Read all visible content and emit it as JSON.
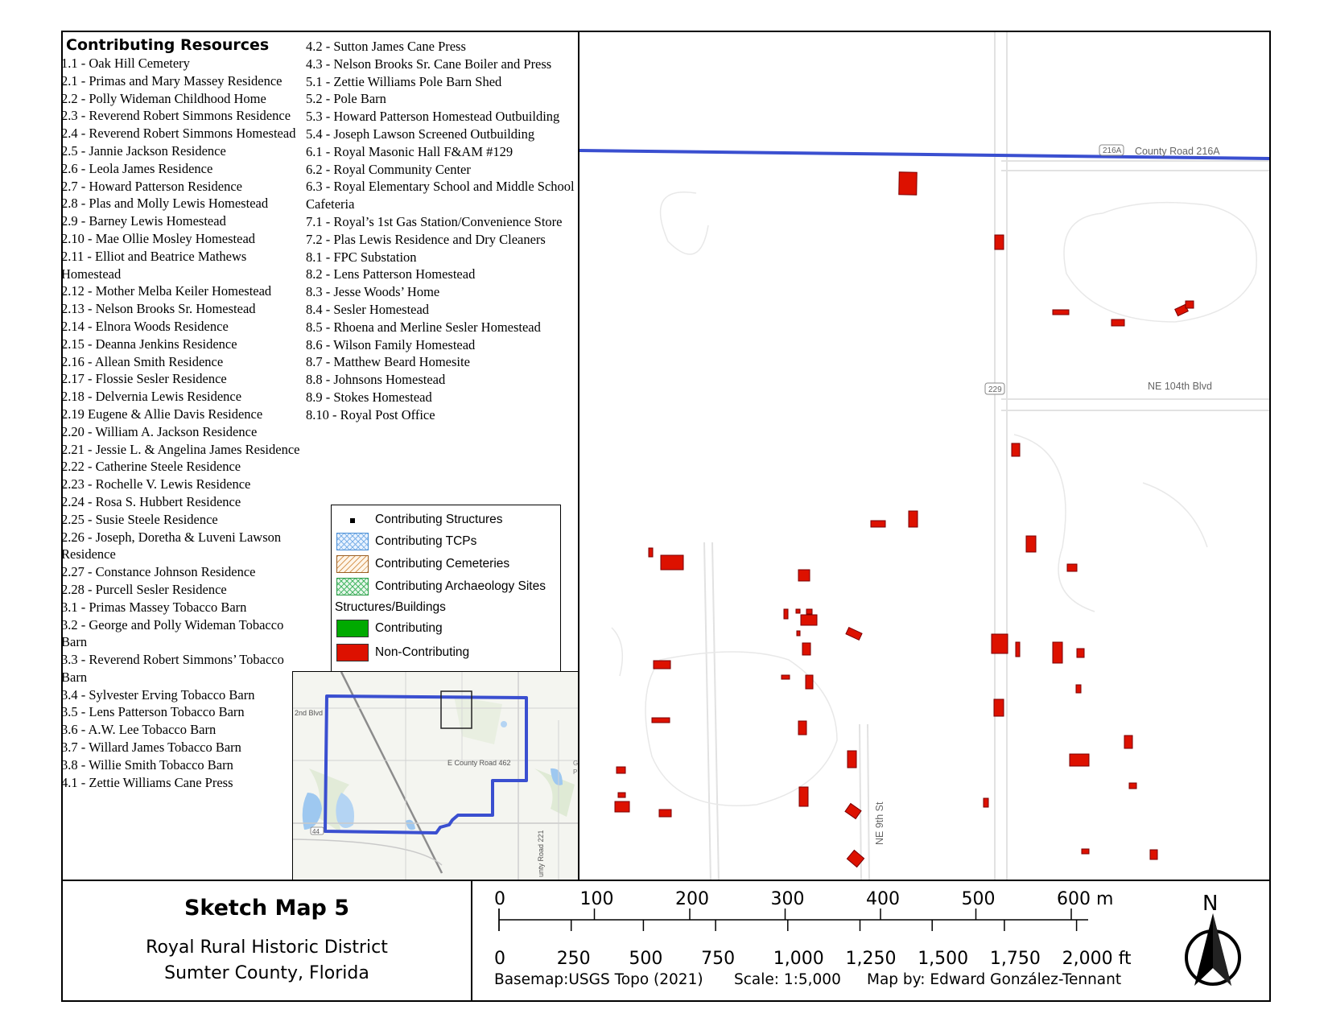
{
  "resources": {
    "heading": "Contributing Resources",
    "left_column": [
      "1.1 - Oak Hill Cemetery",
      "2.1 - Primas and Mary Massey Residence",
      "2.2 - Polly Wideman Childhood Home",
      "2.3 - Reverend Robert Simmons Residence",
      "2.4 - Reverend Robert Simmons Homestead",
      "2.5 - Jannie Jackson Residence",
      "2.6 - Leola James Residence",
      "2.7 - Howard Patterson Residence",
      "2.8 - Plas and Molly Lewis Homestead",
      "2.9 - Barney Lewis Homestead",
      "2.10 - Mae Ollie Mosley Homestead",
      "2.11 - Elliot and Beatrice Mathews Homestead",
      "2.12 - Mother Melba Keiler Homestead",
      "2.13 - Nelson Brooks Sr. Homestead",
      "2.14 - Elnora Woods Residence",
      "2.15 - Deanna Jenkins Residence",
      "2.16 - Allean Smith Residence",
      "2.17 - Flossie Sesler Residence",
      "2.18 - Delvernia Lewis Residence",
      "2.19 Eugene & Allie Davis Residence",
      "2.20 - William A. Jackson Residence",
      "2.21 - Jessie L. & Angelina James Residence",
      "2.22 - Catherine Steele Residence",
      "2.23 -  Rochelle V. Lewis Residence",
      "2.24 - Rosa S. Hubbert Residence",
      "2.25 - Susie Steele Residence",
      "2.26 - Joseph, Doretha & Luveni Lawson Residence",
      "2.27 - Constance Johnson Residence",
      "2.28 - Purcell Sesler Residence",
      "3.1 - Primas Massey Tobacco Barn",
      "3.2 - George and Polly Wideman Tobacco Barn",
      "3.3 - Reverend Robert Simmons’ Tobacco Barn",
      "3.4 - Sylvester Erving Tobacco Barn",
      "3.5 - Lens Patterson Tobacco Barn",
      "3.6 - A.W. Lee Tobacco Barn",
      "3.7 - Willard James Tobacco Barn",
      "3.8 - Willie Smith Tobacco Barn",
      "4.1 - Zettie Williams Cane Press"
    ],
    "right_column": [
      "4.2 - Sutton James Cane Press",
      "4.3 - Nelson Brooks Sr. Cane Boiler and Press",
      "5.1 - Zettie Williams Pole Barn Shed",
      "5.2 - Pole Barn",
      "5.3 - Howard Patterson Homestead Outbuilding",
      "5.4 - Joseph Lawson Screened Outbuilding",
      "6.1 - Royal Masonic Hall F&AM #129",
      "6.2 - Royal Community Center",
      "6.3 - Royal Elementary School and Middle School Cafeteria",
      "7.1 - Royal’s 1st Gas Station/Convenience Store",
      "7.2 - Plas Lewis Residence and Dry Cleaners",
      "8.1 - FPC Substation",
      "8.2 - Lens Patterson Homestead",
      "8.3 - Jesse Woods’ Home",
      "8.4 - Sesler Homestead",
      "8.5 - Rhoena and Merline Sesler Homestead",
      "8.6 - Wilson Family Homestead",
      "8.7 - Matthew Beard Homesite",
      "8.8 - Johnsons Homestead",
      "8.9 - Stokes Homestead",
      "8.10 - Royal Post Office"
    ]
  },
  "legend": {
    "structures": "Contributing Structures",
    "tcps": "Contributing TCPs",
    "cemeteries": "Contributing Cemeteries",
    "archaeology": "Contributing Archaeology Sites",
    "section": "Structures/Buildings",
    "contributing": "Contributing",
    "non_contributing": "Non-Contributing",
    "colors": {
      "contributing": "#00aa00",
      "non_contributing": "#dd1100",
      "tcp": "#4a8fd6",
      "cemetery": "#c8863c",
      "archaeology": "#2e9e4a"
    }
  },
  "map_labels": {
    "county_road_shield": "216A",
    "county_road": "County Road 216A",
    "route_shield": "229",
    "blvd": "NE 104th Blvd",
    "street": "NE 9th St"
  },
  "inset_labels": {
    "road1": "2nd Blvd",
    "road2": "E County Road 462",
    "road3": "unty Road 221",
    "shield": "44",
    "edge1": "G",
    "edge2": "P"
  },
  "title_block": {
    "title": "Sketch Map 5",
    "subtitle1": "Royal Rural Historic District",
    "subtitle2": "Sumter County, Florida"
  },
  "scale": {
    "meters": [
      "0",
      "100",
      "200",
      "300",
      "400",
      "500",
      "600 m"
    ],
    "feet": [
      "0",
      "250",
      "500",
      "750",
      "1,000",
      "1,250",
      "1,500",
      "1,750",
      "2,000 ft"
    ],
    "basemap": "Basemap:USGS Topo (2021)",
    "ratio": "Scale: 1:5,000",
    "author": "Map by: Edward González-Tennant"
  },
  "north_arrow": {
    "label": "N"
  },
  "colors": {
    "boundary": "#3a4fd0",
    "structure_fill": "#dd1100"
  }
}
